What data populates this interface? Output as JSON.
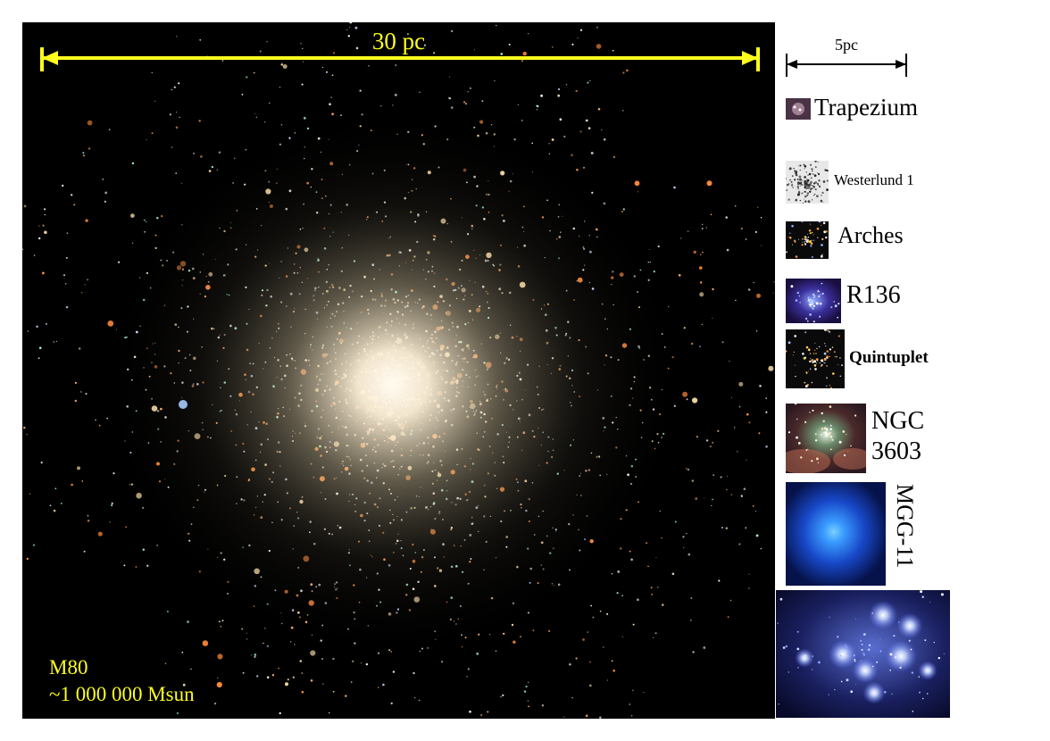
{
  "main": {
    "scale_label": "30 pc",
    "cluster_name": "M80",
    "cluster_mass": "~1 000 000 Msun"
  },
  "side": {
    "scale_label": "5pc",
    "clusters": [
      {
        "label": "Trapezium"
      },
      {
        "label": "Westerlund 1"
      },
      {
        "label": "Arches"
      },
      {
        "label": "R136"
      },
      {
        "label": "Quintuplet"
      },
      {
        "label_line1": "NGC",
        "label_line2": "3603"
      },
      {
        "label": "MGG-11"
      },
      {
        "label": ""
      }
    ]
  },
  "colors": {
    "scale_bar": "#ffff1e",
    "caption": "#ffff1e",
    "background": "#000000"
  }
}
